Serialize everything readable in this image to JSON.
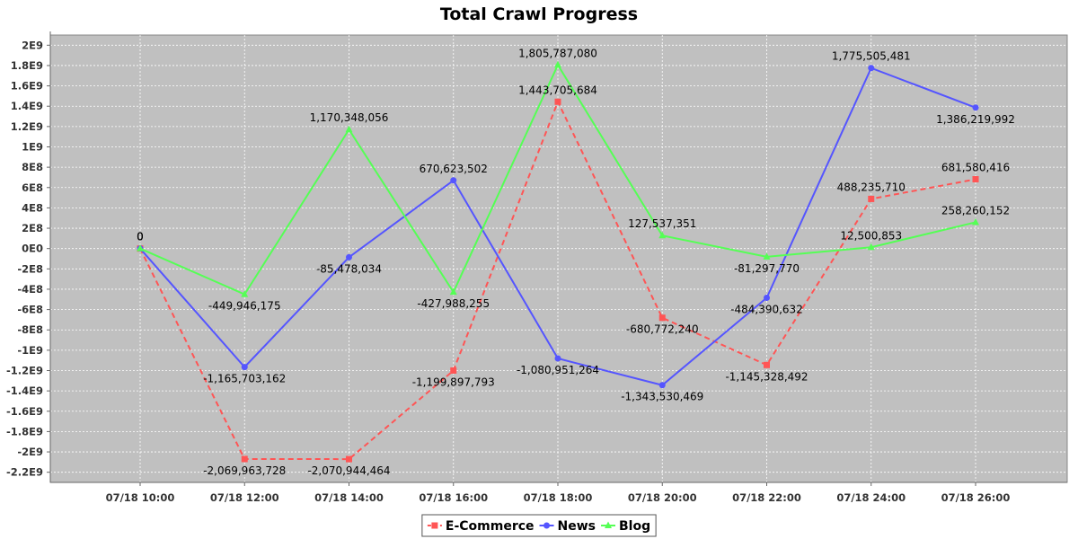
{
  "chart_data": {
    "type": "line",
    "title": "Total Crawl Progress",
    "categories": [
      "07/18 10:00",
      "07/18 12:00",
      "07/18 14:00",
      "07/18 16:00",
      "07/18 18:00",
      "07/18 20:00",
      "07/18 22:00",
      "07/18 24:00",
      "07/18 26:00"
    ],
    "ylim": [
      -2300000000,
      2100000000
    ],
    "yticks": [
      -2200000000,
      -2000000000,
      -1800000000,
      -1600000000,
      -1400000000,
      -1200000000,
      -1000000000,
      -800000000,
      -600000000,
      -400000000,
      -200000000,
      0,
      200000000,
      400000000,
      600000000,
      800000000,
      1000000000,
      1200000000,
      1400000000,
      1600000000,
      1800000000,
      2000000000
    ],
    "ytick_labels": [
      "-2.2E9",
      "-2E9",
      "-1.8E9",
      "-1.6E9",
      "-1.4E9",
      "-1.2E9",
      "-1E9",
      "-8E8",
      "-6E8",
      "-4E8",
      "-2E8",
      "0E0",
      "2E8",
      "4E8",
      "6E8",
      "8E8",
      "1E9",
      "1.2E9",
      "1.4E9",
      "1.6E9",
      "1.8E9",
      "2E9"
    ],
    "grid": true,
    "legend_position": "bottom",
    "plot_background": "#c0c0c0",
    "series": [
      {
        "name": "E-Commerce",
        "color": "#ff5555",
        "marker": "square",
        "dashed": true,
        "values": [
          0,
          -2069963728,
          -2070944464,
          -1199897793,
          1443705684,
          -680772240,
          -1145328492,
          488235710,
          681580416
        ],
        "labels": [
          "0",
          "-2,069,963,728",
          "-2,070,944,464",
          "-1,199,897,793",
          "1,443,705,684",
          "-680,772,240",
          "-1,145,328,492",
          "488,235,710",
          "681,580,416"
        ]
      },
      {
        "name": "News",
        "color": "#5555ff",
        "marker": "circle",
        "dashed": false,
        "values": [
          0,
          -1165703162,
          -85478034,
          670623502,
          -1080951264,
          -1343530469,
          -484390632,
          1775505481,
          1386219992
        ],
        "labels": [
          "0",
          "-1,165,703,162",
          "-85,478,034",
          "670,623,502",
          "-1,080,951,264",
          "-1,343,530,469",
          "-484,390,632",
          "1,775,505,481",
          "1,386,219,992"
        ]
      },
      {
        "name": "Blog",
        "color": "#55ff55",
        "marker": "triangle",
        "dashed": false,
        "values": [
          0,
          -449946175,
          1170348056,
          -427988255,
          1805787080,
          127537351,
          -81297770,
          12500853,
          258260152
        ],
        "labels": [
          "0",
          "-449,946,175",
          "1,170,348,056",
          "-427,988,255",
          "1,805,787,080",
          "127,537,351",
          "-81,297,770",
          "12,500,853",
          "258,260,152"
        ]
      }
    ]
  }
}
